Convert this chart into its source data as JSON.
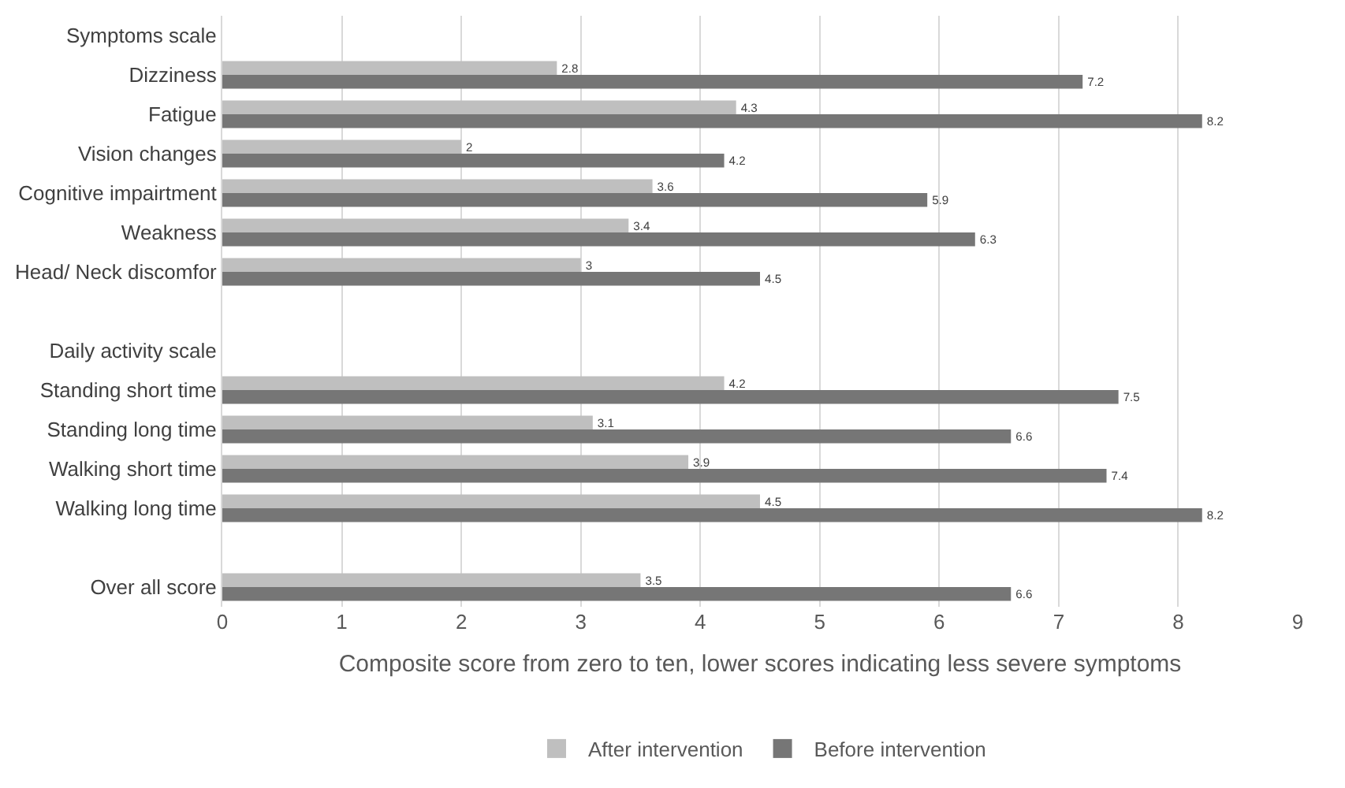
{
  "chart_data": {
    "type": "bar",
    "orientation": "horizontal",
    "xlabel": "Composite score from zero to ten, lower scores indicating less severe symptoms",
    "categories": [
      "Symptoms scale",
      "Dizziness",
      "Fatigue",
      "Vision changes",
      "Cognitive impairtment",
      "Weakness",
      "Head/ Neck discomfor",
      null,
      "Daily activity scale",
      "Standing short time",
      "Standing long time",
      "Walking short time",
      "Walking long time",
      null,
      "Over all score"
    ],
    "series": [
      {
        "name": "After intervention",
        "color": "#bfbfbf",
        "values": [
          null,
          2.8,
          4.3,
          2,
          3.6,
          3.4,
          3,
          null,
          null,
          4.2,
          3.1,
          3.9,
          4.5,
          null,
          3.5
        ]
      },
      {
        "name": "Before intervention",
        "color": "#767676",
        "values": [
          null,
          7.2,
          8.2,
          4.2,
          5.9,
          6.3,
          4.5,
          null,
          null,
          7.5,
          6.6,
          7.4,
          8.2,
          null,
          6.6
        ]
      }
    ],
    "xlim": [
      0,
      9
    ],
    "xticks": [
      0,
      1,
      2,
      3,
      4,
      5,
      6,
      7,
      8,
      9
    ],
    "grid": "x",
    "legend": "bottom",
    "data_labels": true
  }
}
